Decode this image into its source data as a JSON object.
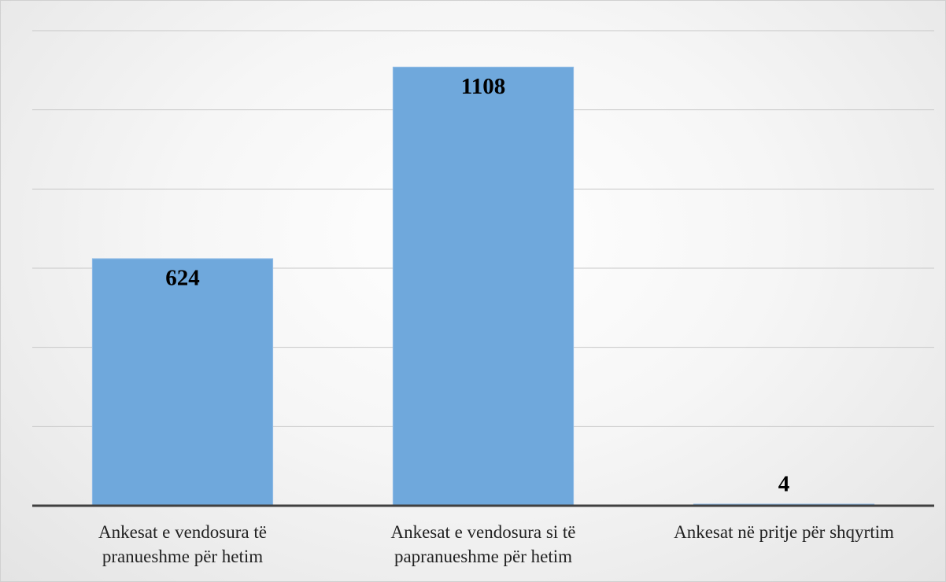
{
  "chart_data": {
    "type": "bar",
    "categories": [
      "Ankesat e vendosura të pranueshme për hetim",
      "Ankesat e vendosura si të papranueshme për hetim",
      "Ankesat në pritje për shqyrtim"
    ],
    "values": [
      624,
      1108,
      4
    ],
    "color": "#6fa8dc",
    "ylim": [
      0,
      1200
    ],
    "yticks": [
      0,
      200,
      400,
      600,
      800,
      1000,
      1200
    ],
    "grid": true
  }
}
